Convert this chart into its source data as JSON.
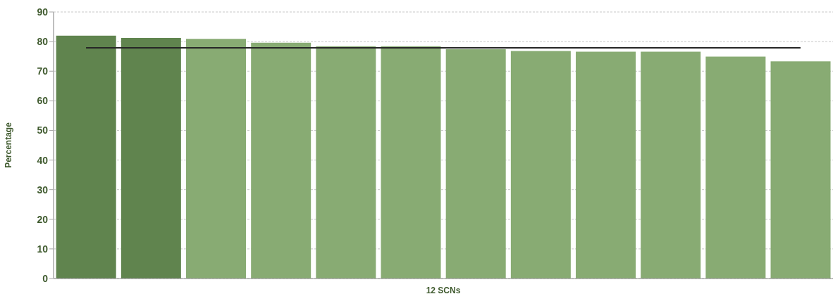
{
  "chart_data": {
    "type": "bar",
    "xlabel": "12 SCNs",
    "ylabel": "Percentage",
    "categories": [
      null,
      null,
      null,
      null,
      null,
      null,
      null,
      null,
      null,
      null,
      null,
      null
    ],
    "values": [
      82.0,
      81.2,
      80.9,
      79.6,
      78.4,
      78.4,
      77.4,
      76.8,
      76.6,
      76.6,
      74.9,
      73.3
    ],
    "colors": [
      "#60844e",
      "#60844e",
      "#88ab73",
      "#88ab73",
      "#88ab73",
      "#88ab73",
      "#88ab73",
      "#88ab73",
      "#88ab73",
      "#88ab73",
      "#88ab73",
      "#88ab73"
    ],
    "ylim": [
      0,
      90
    ],
    "yticks": [
      0,
      10,
      20,
      30,
      40,
      50,
      60,
      70,
      80,
      90
    ],
    "grid": "y",
    "ref_lines": [
      {
        "axis": "y",
        "value": 77.9,
        "color": "#262626"
      }
    ]
  }
}
